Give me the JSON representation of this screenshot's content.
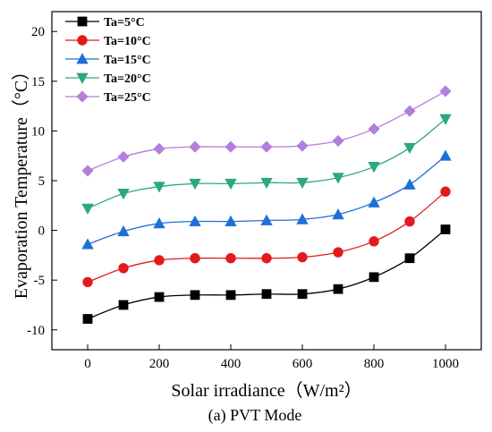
{
  "chart_data": {
    "type": "line",
    "caption": "(a) PVT Mode",
    "xlabel": "Solar irradiance（W/m²）",
    "ylabel": "Evaporation Temperature（°C）",
    "xlim": [
      -100,
      1100
    ],
    "ylim": [
      -12,
      22
    ],
    "xticks": [
      "0",
      "200",
      "400",
      "600",
      "800",
      "1000"
    ],
    "yticks": [
      "-10",
      "-5",
      "0",
      "5",
      "10",
      "15",
      "20"
    ],
    "grid": false,
    "legend_position": "top-left",
    "x": [
      0,
      100,
      200,
      300,
      400,
      500,
      600,
      700,
      800,
      900,
      1000
    ],
    "series": [
      {
        "name": "Ta=5°C",
        "color": "#000000",
        "marker": "square",
        "values": [
          -8.9,
          -7.5,
          -6.7,
          -6.5,
          -6.5,
          -6.4,
          -6.4,
          -5.9,
          -4.7,
          -2.8,
          0.1
        ]
      },
      {
        "name": "Ta=10°C",
        "color": "#e31a1c",
        "marker": "circle",
        "values": [
          -5.2,
          -3.8,
          -3.0,
          -2.8,
          -2.8,
          -2.8,
          -2.7,
          -2.2,
          -1.1,
          0.9,
          3.9
        ]
      },
      {
        "name": "Ta=15°C",
        "color": "#1f6fd6",
        "marker": "triangle-up",
        "values": [
          -1.4,
          -0.1,
          0.7,
          0.9,
          0.9,
          1.0,
          1.1,
          1.6,
          2.8,
          4.6,
          7.5
        ]
      },
      {
        "name": "Ta=20°C",
        "color": "#2ca87f",
        "marker": "triangle-down",
        "values": [
          2.2,
          3.7,
          4.4,
          4.7,
          4.7,
          4.8,
          4.8,
          5.3,
          6.4,
          8.3,
          11.2
        ]
      },
      {
        "name": "Ta=25°C",
        "color": "#b27fdc",
        "marker": "diamond",
        "values": [
          6.0,
          7.4,
          8.2,
          8.4,
          8.4,
          8.4,
          8.5,
          9.0,
          10.2,
          12.0,
          14.0
        ]
      }
    ]
  }
}
